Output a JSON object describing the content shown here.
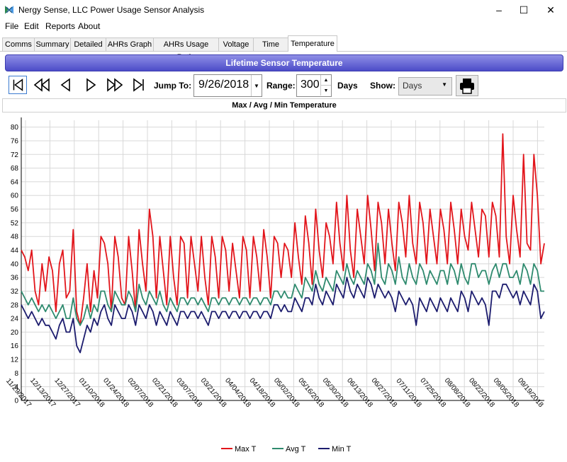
{
  "window": {
    "title": "Nergy Sense, LLC Power Usage Sensor Analysis",
    "controls": [
      "–",
      "☐",
      "✕"
    ]
  },
  "menu": [
    "File",
    "Edit",
    "Reports",
    "About"
  ],
  "tabs": [
    {
      "label": "Comms"
    },
    {
      "label": "Summary"
    },
    {
      "label": "Detailed"
    },
    {
      "label": "AHRs Graph"
    },
    {
      "label": "AHRs Usage Ratio"
    },
    {
      "label": "Voltage"
    },
    {
      "label": "Time"
    },
    {
      "label": "Temperature",
      "active": true
    }
  ],
  "banner": "Lifetime Sensor Temperature",
  "toolbar": {
    "jump_label": "Jump To:",
    "jump_value": "9/26/2018",
    "range_label": "Range:",
    "range_value": "300",
    "range_unit": "Days",
    "show_label": "Show:",
    "show_value": "Days"
  },
  "colors": {
    "banner": "#5a5ad0",
    "max": "#e2151b",
    "avg": "#2e8a6e",
    "min": "#1c1c6e",
    "grid": "#d8d8d8"
  },
  "chart_data": {
    "type": "line",
    "title": "Max / Avg / Min Temperature",
    "ylim": [
      0,
      82
    ],
    "yticks": [
      0,
      4,
      8,
      12,
      16,
      20,
      24,
      28,
      32,
      36,
      40,
      44,
      48,
      52,
      56,
      60,
      64,
      68,
      72,
      76,
      80
    ],
    "x_range": [
      "11/29/2017",
      "09/25/2018"
    ],
    "x_tick_labels": [
      "11/29/2017",
      "12/13/2017",
      "12/27/2017",
      "01/10/2018",
      "01/24/2018",
      "02/07/2018",
      "02/21/2018",
      "03/07/2018",
      "03/21/2018",
      "04/04/2018",
      "04/18/2018",
      "05/02/2018",
      "05/16/2018",
      "05/30/2018",
      "06/13/2018",
      "06/27/2018",
      "07/11/2018",
      "07/25/2018",
      "08/08/2018",
      "08/22/2018",
      "09/05/2018",
      "09/19/2018"
    ],
    "grid": true,
    "legend": "bottom-center",
    "series": [
      {
        "name": "Max T",
        "values": [
          44,
          42,
          38,
          44,
          32,
          28,
          40,
          32,
          42,
          38,
          26,
          40,
          44,
          30,
          32,
          50,
          26,
          22,
          30,
          40,
          26,
          38,
          30,
          48,
          46,
          40,
          26,
          48,
          42,
          30,
          28,
          48,
          38,
          26,
          50,
          40,
          32,
          56,
          48,
          30,
          48,
          38,
          28,
          48,
          36,
          28,
          48,
          46,
          30,
          48,
          40,
          32,
          48,
          36,
          28,
          48,
          42,
          30,
          48,
          44,
          32,
          46,
          38,
          30,
          48,
          44,
          30,
          48,
          42,
          32,
          50,
          42,
          30,
          48,
          46,
          36,
          46,
          44,
          36,
          52,
          42,
          34,
          54,
          46,
          34,
          56,
          44,
          36,
          52,
          48,
          40,
          58,
          46,
          38,
          60,
          44,
          36,
          56,
          48,
          40,
          60,
          50,
          38,
          58,
          52,
          40,
          56,
          46,
          38,
          58,
          52,
          42,
          60,
          46,
          40,
          58,
          52,
          40,
          56,
          48,
          40,
          56,
          50,
          40,
          58,
          50,
          40,
          56,
          48,
          44,
          58,
          50,
          42,
          56,
          54,
          42,
          58,
          54,
          42,
          78,
          48,
          40,
          60,
          50,
          42,
          72,
          46,
          44,
          72,
          60,
          40,
          46
        ]
      },
      {
        "name": "Avg T",
        "values": [
          32,
          30,
          28,
          30,
          28,
          26,
          28,
          26,
          28,
          26,
          24,
          26,
          28,
          24,
          24,
          30,
          24,
          22,
          24,
          28,
          24,
          28,
          26,
          32,
          32,
          28,
          26,
          32,
          30,
          28,
          28,
          32,
          30,
          26,
          34,
          30,
          28,
          32,
          30,
          28,
          32,
          28,
          26,
          30,
          28,
          26,
          30,
          30,
          28,
          30,
          30,
          28,
          30,
          28,
          26,
          30,
          30,
          28,
          30,
          30,
          28,
          30,
          30,
          28,
          30,
          30,
          28,
          30,
          30,
          28,
          30,
          30,
          28,
          32,
          32,
          30,
          32,
          30,
          30,
          34,
          32,
          30,
          36,
          34,
          32,
          38,
          34,
          32,
          36,
          34,
          32,
          38,
          36,
          34,
          40,
          36,
          34,
          38,
          36,
          34,
          40,
          38,
          34,
          46,
          36,
          34,
          40,
          38,
          34,
          42,
          36,
          34,
          40,
          36,
          34,
          40,
          38,
          34,
          38,
          36,
          34,
          38,
          38,
          34,
          40,
          38,
          34,
          40,
          36,
          34,
          40,
          40,
          36,
          38,
          38,
          34,
          38,
          40,
          36,
          40,
          40,
          36,
          36,
          38,
          34,
          40,
          38,
          34,
          40,
          38,
          32,
          32
        ]
      },
      {
        "name": "Min T",
        "values": [
          28,
          26,
          24,
          26,
          24,
          22,
          24,
          22,
          22,
          20,
          18,
          22,
          24,
          20,
          20,
          24,
          16,
          14,
          18,
          22,
          20,
          24,
          22,
          26,
          28,
          24,
          22,
          28,
          26,
          24,
          24,
          28,
          26,
          22,
          28,
          26,
          24,
          28,
          26,
          22,
          26,
          24,
          22,
          26,
          24,
          22,
          26,
          26,
          24,
          26,
          26,
          24,
          26,
          24,
          22,
          26,
          26,
          24,
          26,
          26,
          24,
          26,
          26,
          24,
          26,
          26,
          24,
          26,
          26,
          24,
          26,
          26,
          24,
          28,
          28,
          26,
          28,
          26,
          26,
          30,
          28,
          26,
          30,
          30,
          28,
          34,
          30,
          28,
          32,
          30,
          28,
          34,
          32,
          30,
          36,
          32,
          30,
          34,
          32,
          30,
          36,
          34,
          30,
          34,
          32,
          30,
          32,
          30,
          26,
          32,
          30,
          28,
          30,
          28,
          22,
          30,
          28,
          26,
          30,
          28,
          26,
          30,
          28,
          26,
          30,
          28,
          26,
          32,
          30,
          26,
          32,
          30,
          28,
          30,
          28,
          22,
          32,
          32,
          30,
          34,
          34,
          32,
          30,
          32,
          28,
          32,
          30,
          28,
          34,
          32,
          24,
          26
        ]
      }
    ]
  }
}
